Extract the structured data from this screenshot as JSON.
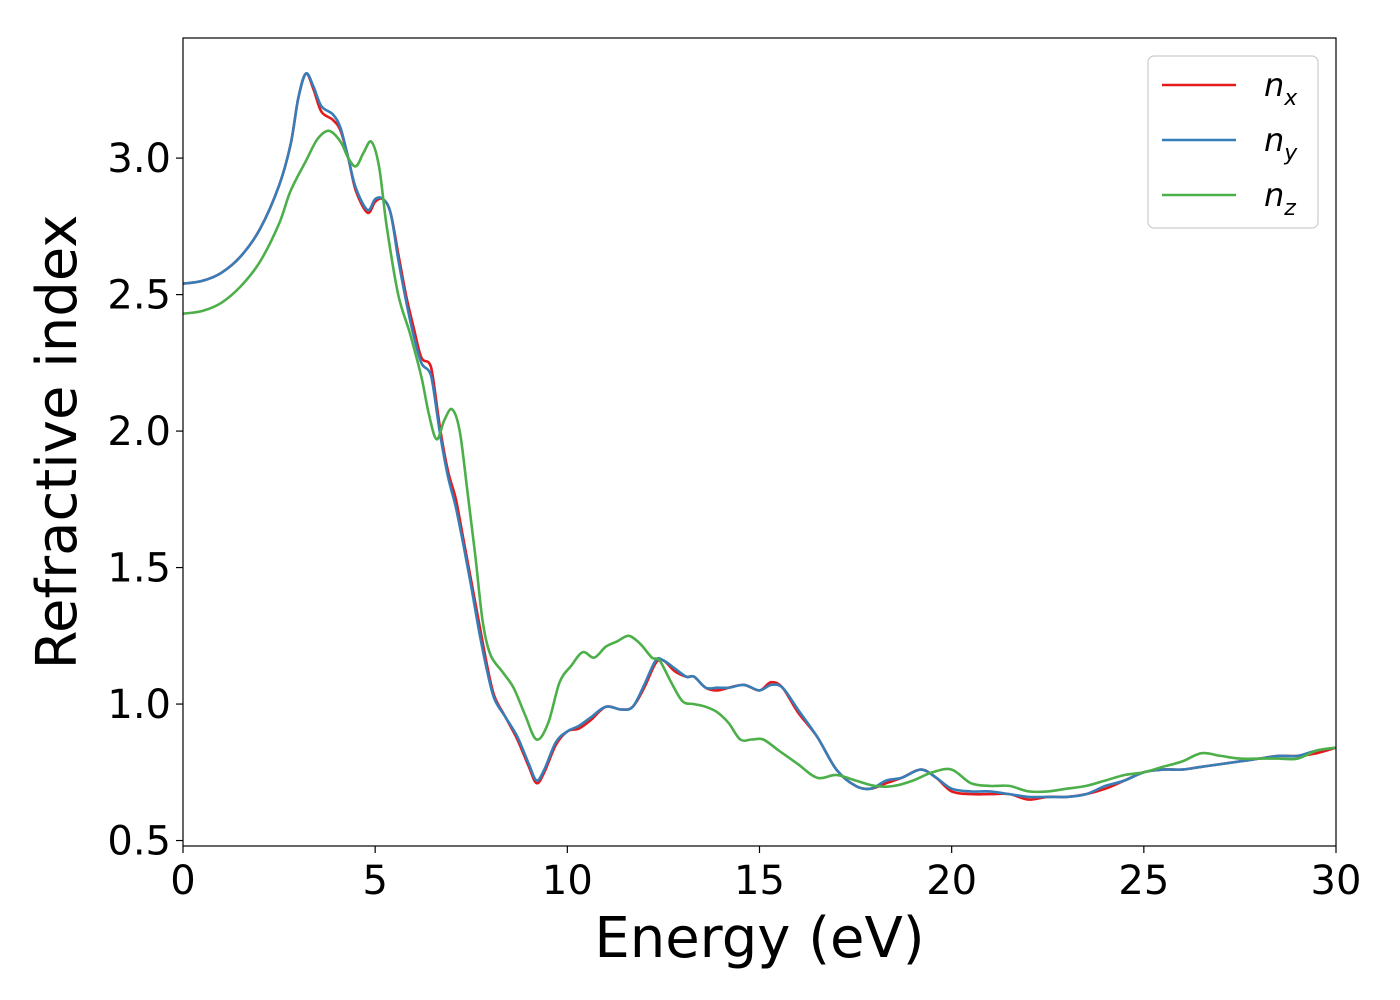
{
  "chart_data": {
    "type": "line",
    "title": "",
    "xlabel": "Energy (eV)",
    "ylabel": "Refractive index",
    "xlim": [
      0,
      30
    ],
    "ylim": [
      0.48,
      3.44
    ],
    "xticks": [
      0,
      5,
      10,
      15,
      20,
      25,
      30
    ],
    "xtick_labels": [
      "0",
      "5",
      "10",
      "15",
      "20",
      "25",
      "30"
    ],
    "yticks": [
      0.5,
      1.0,
      1.5,
      2.0,
      2.5,
      3.0
    ],
    "ytick_labels": [
      "0.5",
      "1.0",
      "1.5",
      "2.0",
      "2.5",
      "3.0"
    ],
    "grid": false,
    "legend_position": "top-right",
    "series": [
      {
        "name": "n",
        "subscript": "x",
        "color": "#e41a1c",
        "points": [
          [
            0,
            2.54
          ],
          [
            0.5,
            2.55
          ],
          [
            1,
            2.58
          ],
          [
            1.5,
            2.64
          ],
          [
            2,
            2.74
          ],
          [
            2.5,
            2.9
          ],
          [
            2.8,
            3.05
          ],
          [
            3,
            3.22
          ],
          [
            3.2,
            3.31
          ],
          [
            3.4,
            3.25
          ],
          [
            3.6,
            3.17
          ],
          [
            3.9,
            3.14
          ],
          [
            4.1,
            3.1
          ],
          [
            4.3,
            3.0
          ],
          [
            4.5,
            2.88
          ],
          [
            4.8,
            2.8
          ],
          [
            5.0,
            2.84
          ],
          [
            5.2,
            2.85
          ],
          [
            5.4,
            2.8
          ],
          [
            5.6,
            2.65
          ],
          [
            5.8,
            2.5
          ],
          [
            6.0,
            2.38
          ],
          [
            6.2,
            2.27
          ],
          [
            6.4,
            2.25
          ],
          [
            6.5,
            2.2
          ],
          [
            6.7,
            2.0
          ],
          [
            6.9,
            1.85
          ],
          [
            7.1,
            1.75
          ],
          [
            7.3,
            1.6
          ],
          [
            7.5,
            1.45
          ],
          [
            7.7,
            1.3
          ],
          [
            7.9,
            1.15
          ],
          [
            8.1,
            1.03
          ],
          [
            8.4,
            0.95
          ],
          [
            8.7,
            0.87
          ],
          [
            9.0,
            0.77
          ],
          [
            9.2,
            0.71
          ],
          [
            9.4,
            0.75
          ],
          [
            9.7,
            0.85
          ],
          [
            10.0,
            0.9
          ],
          [
            10.3,
            0.91
          ],
          [
            10.6,
            0.94
          ],
          [
            11.0,
            0.99
          ],
          [
            11.4,
            0.98
          ],
          [
            11.7,
            0.99
          ],
          [
            12.0,
            1.06
          ],
          [
            12.3,
            1.15
          ],
          [
            12.5,
            1.16
          ],
          [
            12.8,
            1.12
          ],
          [
            13.1,
            1.1
          ],
          [
            13.3,
            1.1
          ],
          [
            13.6,
            1.06
          ],
          [
            13.9,
            1.05
          ],
          [
            14.2,
            1.06
          ],
          [
            14.6,
            1.07
          ],
          [
            15.0,
            1.05
          ],
          [
            15.3,
            1.08
          ],
          [
            15.6,
            1.06
          ],
          [
            16.0,
            0.97
          ],
          [
            16.5,
            0.88
          ],
          [
            17.0,
            0.76
          ],
          [
            17.5,
            0.7
          ],
          [
            17.9,
            0.69
          ],
          [
            18.3,
            0.71
          ],
          [
            18.7,
            0.73
          ],
          [
            19.2,
            0.76
          ],
          [
            19.6,
            0.73
          ],
          [
            20.0,
            0.68
          ],
          [
            20.5,
            0.67
          ],
          [
            21.0,
            0.67
          ],
          [
            21.5,
            0.67
          ],
          [
            22.0,
            0.65
          ],
          [
            22.5,
            0.66
          ],
          [
            23.0,
            0.66
          ],
          [
            23.5,
            0.67
          ],
          [
            24.0,
            0.69
          ],
          [
            24.5,
            0.72
          ],
          [
            25.0,
            0.75
          ],
          [
            25.5,
            0.76
          ],
          [
            26.0,
            0.76
          ],
          [
            26.5,
            0.77
          ],
          [
            27.0,
            0.78
          ],
          [
            27.5,
            0.79
          ],
          [
            28.0,
            0.8
          ],
          [
            28.5,
            0.81
          ],
          [
            29.0,
            0.81
          ],
          [
            29.5,
            0.82
          ],
          [
            30.0,
            0.84
          ]
        ]
      },
      {
        "name": "n",
        "subscript": "y",
        "color": "#377eb8",
        "points": [
          [
            0,
            2.54
          ],
          [
            0.5,
            2.55
          ],
          [
            1,
            2.58
          ],
          [
            1.5,
            2.64
          ],
          [
            2,
            2.74
          ],
          [
            2.5,
            2.9
          ],
          [
            2.8,
            3.05
          ],
          [
            3,
            3.22
          ],
          [
            3.2,
            3.31
          ],
          [
            3.4,
            3.26
          ],
          [
            3.6,
            3.19
          ],
          [
            3.9,
            3.16
          ],
          [
            4.1,
            3.11
          ],
          [
            4.3,
            3.0
          ],
          [
            4.5,
            2.89
          ],
          [
            4.8,
            2.81
          ],
          [
            5.0,
            2.85
          ],
          [
            5.2,
            2.85
          ],
          [
            5.4,
            2.8
          ],
          [
            5.6,
            2.63
          ],
          [
            5.8,
            2.48
          ],
          [
            6.0,
            2.35
          ],
          [
            6.2,
            2.25
          ],
          [
            6.4,
            2.22
          ],
          [
            6.5,
            2.17
          ],
          [
            6.7,
            1.98
          ],
          [
            6.9,
            1.83
          ],
          [
            7.1,
            1.72
          ],
          [
            7.3,
            1.58
          ],
          [
            7.5,
            1.43
          ],
          [
            7.7,
            1.27
          ],
          [
            7.9,
            1.13
          ],
          [
            8.1,
            1.02
          ],
          [
            8.4,
            0.95
          ],
          [
            8.7,
            0.88
          ],
          [
            9.0,
            0.78
          ],
          [
            9.2,
            0.72
          ],
          [
            9.4,
            0.76
          ],
          [
            9.7,
            0.86
          ],
          [
            10.0,
            0.9
          ],
          [
            10.3,
            0.92
          ],
          [
            10.6,
            0.95
          ],
          [
            11.0,
            0.99
          ],
          [
            11.4,
            0.98
          ],
          [
            11.7,
            0.99
          ],
          [
            12.0,
            1.07
          ],
          [
            12.3,
            1.16
          ],
          [
            12.5,
            1.16
          ],
          [
            12.8,
            1.13
          ],
          [
            13.1,
            1.1
          ],
          [
            13.3,
            1.1
          ],
          [
            13.6,
            1.06
          ],
          [
            13.9,
            1.06
          ],
          [
            14.2,
            1.06
          ],
          [
            14.6,
            1.07
          ],
          [
            15.0,
            1.05
          ],
          [
            15.3,
            1.07
          ],
          [
            15.6,
            1.06
          ],
          [
            16.0,
            0.98
          ],
          [
            16.5,
            0.88
          ],
          [
            17.0,
            0.76
          ],
          [
            17.5,
            0.7
          ],
          [
            17.9,
            0.69
          ],
          [
            18.3,
            0.72
          ],
          [
            18.7,
            0.73
          ],
          [
            19.2,
            0.76
          ],
          [
            19.6,
            0.73
          ],
          [
            20.0,
            0.69
          ],
          [
            20.5,
            0.68
          ],
          [
            21.0,
            0.68
          ],
          [
            21.5,
            0.67
          ],
          [
            22.0,
            0.66
          ],
          [
            22.5,
            0.66
          ],
          [
            23.0,
            0.66
          ],
          [
            23.5,
            0.67
          ],
          [
            24.0,
            0.7
          ],
          [
            24.5,
            0.72
          ],
          [
            25.0,
            0.75
          ],
          [
            25.5,
            0.76
          ],
          [
            26.0,
            0.76
          ],
          [
            26.5,
            0.77
          ],
          [
            27.0,
            0.78
          ],
          [
            27.5,
            0.79
          ],
          [
            28.0,
            0.8
          ],
          [
            28.5,
            0.81
          ],
          [
            29.0,
            0.81
          ],
          [
            29.5,
            0.83
          ],
          [
            30.0,
            0.84
          ]
        ]
      },
      {
        "name": "n",
        "subscript": "z",
        "color": "#4daf4a",
        "points": [
          [
            0,
            2.43
          ],
          [
            0.5,
            2.44
          ],
          [
            1,
            2.47
          ],
          [
            1.5,
            2.53
          ],
          [
            2,
            2.62
          ],
          [
            2.5,
            2.76
          ],
          [
            2.8,
            2.88
          ],
          [
            3.2,
            2.99
          ],
          [
            3.5,
            3.07
          ],
          [
            3.8,
            3.1
          ],
          [
            4.1,
            3.06
          ],
          [
            4.3,
            3.0
          ],
          [
            4.5,
            2.97
          ],
          [
            4.7,
            3.02
          ],
          [
            4.9,
            3.06
          ],
          [
            5.1,
            2.97
          ],
          [
            5.3,
            2.75
          ],
          [
            5.6,
            2.5
          ],
          [
            5.9,
            2.36
          ],
          [
            6.2,
            2.2
          ],
          [
            6.4,
            2.06
          ],
          [
            6.6,
            1.97
          ],
          [
            6.8,
            2.04
          ],
          [
            7.0,
            2.08
          ],
          [
            7.2,
            2.0
          ],
          [
            7.4,
            1.78
          ],
          [
            7.6,
            1.55
          ],
          [
            7.8,
            1.3
          ],
          [
            8.0,
            1.18
          ],
          [
            8.3,
            1.12
          ],
          [
            8.6,
            1.06
          ],
          [
            8.9,
            0.96
          ],
          [
            9.2,
            0.87
          ],
          [
            9.5,
            0.93
          ],
          [
            9.8,
            1.08
          ],
          [
            10.1,
            1.14
          ],
          [
            10.4,
            1.19
          ],
          [
            10.7,
            1.17
          ],
          [
            11.0,
            1.21
          ],
          [
            11.3,
            1.23
          ],
          [
            11.6,
            1.25
          ],
          [
            11.9,
            1.22
          ],
          [
            12.2,
            1.17
          ],
          [
            12.4,
            1.16
          ],
          [
            12.7,
            1.08
          ],
          [
            13.0,
            1.01
          ],
          [
            13.3,
            1.0
          ],
          [
            13.6,
            0.99
          ],
          [
            13.9,
            0.97
          ],
          [
            14.2,
            0.93
          ],
          [
            14.5,
            0.87
          ],
          [
            14.8,
            0.87
          ],
          [
            15.1,
            0.87
          ],
          [
            15.5,
            0.83
          ],
          [
            16.0,
            0.78
          ],
          [
            16.5,
            0.73
          ],
          [
            17.0,
            0.74
          ],
          [
            17.5,
            0.72
          ],
          [
            18.0,
            0.7
          ],
          [
            18.5,
            0.7
          ],
          [
            19.0,
            0.72
          ],
          [
            19.5,
            0.75
          ],
          [
            20.0,
            0.76
          ],
          [
            20.5,
            0.71
          ],
          [
            21.0,
            0.7
          ],
          [
            21.5,
            0.7
          ],
          [
            22.0,
            0.68
          ],
          [
            22.5,
            0.68
          ],
          [
            23.0,
            0.69
          ],
          [
            23.5,
            0.7
          ],
          [
            24.0,
            0.72
          ],
          [
            24.5,
            0.74
          ],
          [
            25.0,
            0.75
          ],
          [
            25.5,
            0.77
          ],
          [
            26.0,
            0.79
          ],
          [
            26.5,
            0.82
          ],
          [
            27.0,
            0.81
          ],
          [
            27.5,
            0.8
          ],
          [
            28.0,
            0.8
          ],
          [
            28.5,
            0.8
          ],
          [
            29.0,
            0.8
          ],
          [
            29.5,
            0.83
          ],
          [
            30.0,
            0.84
          ]
        ]
      }
    ]
  }
}
